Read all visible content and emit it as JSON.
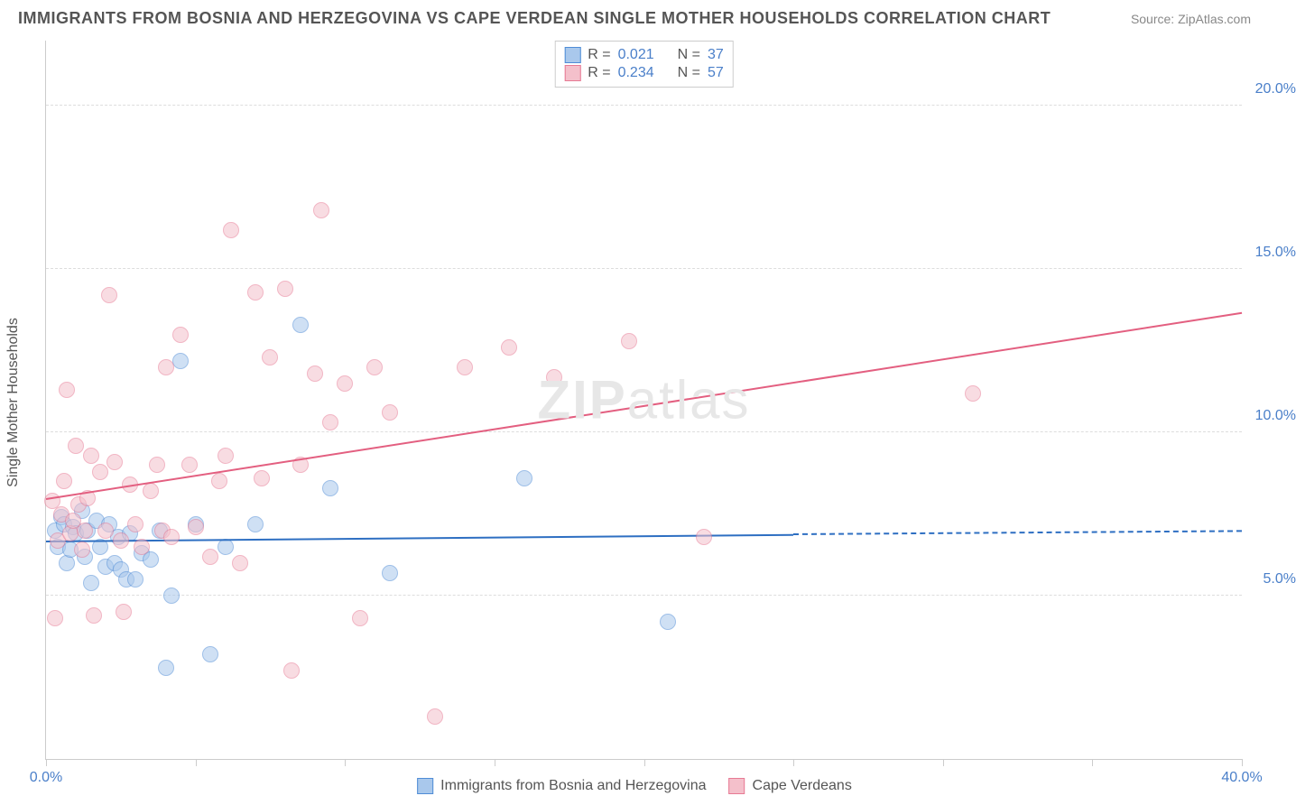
{
  "title": "IMMIGRANTS FROM BOSNIA AND HERZEGOVINA VS CAPE VERDEAN SINGLE MOTHER HOUSEHOLDS CORRELATION CHART",
  "source": "Source: ZipAtlas.com",
  "watermark_prefix": "ZIP",
  "watermark_suffix": "atlas",
  "ylabel": "Single Mother Households",
  "chart": {
    "type": "scatter",
    "xlim": [
      0,
      40
    ],
    "ylim": [
      0,
      22
    ],
    "yticks": [
      5,
      10,
      15,
      20
    ],
    "ytick_labels": [
      "5.0%",
      "10.0%",
      "15.0%",
      "20.0%"
    ],
    "xticks": [
      0,
      5,
      10,
      15,
      20,
      25,
      30,
      35,
      40
    ],
    "xtick_labels_shown": {
      "0": "0.0%",
      "40": "40.0%"
    },
    "background_color": "#ffffff",
    "grid_color": "#dddddd",
    "axis_color": "#cccccc",
    "tick_label_color": "#4a7fc9",
    "point_radius": 9,
    "point_opacity": 0.55
  },
  "series": [
    {
      "id": "bosnia",
      "label": "Immigrants from Bosnia and Herzegovina",
      "fill_color": "#a9c8ec",
      "stroke_color": "#4f8cd6",
      "line_color": "#2e6fc2",
      "R": "0.021",
      "N": "37",
      "trend": {
        "x1": 0,
        "y1": 6.7,
        "x2_solid": 25,
        "y2_solid": 6.9,
        "x2_dash": 40,
        "y2_dash": 7.0
      },
      "points": [
        [
          0.3,
          7.0
        ],
        [
          0.4,
          6.5
        ],
        [
          0.5,
          7.4
        ],
        [
          0.6,
          7.2
        ],
        [
          0.7,
          6.0
        ],
        [
          0.8,
          6.4
        ],
        [
          0.9,
          7.1
        ],
        [
          1.0,
          6.9
        ],
        [
          1.2,
          7.6
        ],
        [
          1.3,
          6.2
        ],
        [
          1.4,
          7.0
        ],
        [
          1.5,
          5.4
        ],
        [
          1.7,
          7.3
        ],
        [
          1.8,
          6.5
        ],
        [
          2.0,
          5.9
        ],
        [
          2.1,
          7.2
        ],
        [
          2.3,
          6.0
        ],
        [
          2.4,
          6.8
        ],
        [
          2.5,
          5.8
        ],
        [
          2.7,
          5.5
        ],
        [
          2.8,
          6.9
        ],
        [
          3.0,
          5.5
        ],
        [
          3.2,
          6.3
        ],
        [
          3.5,
          6.1
        ],
        [
          3.8,
          7.0
        ],
        [
          4.0,
          2.8
        ],
        [
          4.2,
          5.0
        ],
        [
          4.5,
          12.2
        ],
        [
          5.0,
          7.2
        ],
        [
          5.5,
          3.2
        ],
        [
          6.0,
          6.5
        ],
        [
          7.0,
          7.2
        ],
        [
          8.5,
          13.3
        ],
        [
          9.5,
          8.3
        ],
        [
          11.5,
          5.7
        ],
        [
          16.0,
          8.6
        ],
        [
          20.8,
          4.2
        ]
      ]
    },
    {
      "id": "capeverde",
      "label": "Cape Verdeans",
      "fill_color": "#f4c0cb",
      "stroke_color": "#e77a94",
      "line_color": "#e35f80",
      "R": "0.234",
      "N": "57",
      "trend": {
        "x1": 0,
        "y1": 8.0,
        "x2_solid": 40,
        "y2_solid": 13.7,
        "x2_dash": 40,
        "y2_dash": 13.7
      },
      "points": [
        [
          0.2,
          7.9
        ],
        [
          0.3,
          4.3
        ],
        [
          0.4,
          6.7
        ],
        [
          0.5,
          7.5
        ],
        [
          0.6,
          8.5
        ],
        [
          0.7,
          11.3
        ],
        [
          0.8,
          6.9
        ],
        [
          0.9,
          7.3
        ],
        [
          1.0,
          9.6
        ],
        [
          1.1,
          7.8
        ],
        [
          1.2,
          6.4
        ],
        [
          1.3,
          7.0
        ],
        [
          1.4,
          8.0
        ],
        [
          1.5,
          9.3
        ],
        [
          1.6,
          4.4
        ],
        [
          1.8,
          8.8
        ],
        [
          2.0,
          7.0
        ],
        [
          2.1,
          14.2
        ],
        [
          2.3,
          9.1
        ],
        [
          2.5,
          6.7
        ],
        [
          2.6,
          4.5
        ],
        [
          2.8,
          8.4
        ],
        [
          3.0,
          7.2
        ],
        [
          3.2,
          6.5
        ],
        [
          3.5,
          8.2
        ],
        [
          3.7,
          9.0
        ],
        [
          3.9,
          7.0
        ],
        [
          4.0,
          12.0
        ],
        [
          4.2,
          6.8
        ],
        [
          4.5,
          13.0
        ],
        [
          4.8,
          9.0
        ],
        [
          5.0,
          7.1
        ],
        [
          5.5,
          6.2
        ],
        [
          5.8,
          8.5
        ],
        [
          6.0,
          9.3
        ],
        [
          6.2,
          16.2
        ],
        [
          6.5,
          6.0
        ],
        [
          7.0,
          14.3
        ],
        [
          7.2,
          8.6
        ],
        [
          7.5,
          12.3
        ],
        [
          8.0,
          14.4
        ],
        [
          8.2,
          2.7
        ],
        [
          8.5,
          9.0
        ],
        [
          9.0,
          11.8
        ],
        [
          9.2,
          16.8
        ],
        [
          9.5,
          10.3
        ],
        [
          10.0,
          11.5
        ],
        [
          10.5,
          4.3
        ],
        [
          11.0,
          12.0
        ],
        [
          11.5,
          10.6
        ],
        [
          13.0,
          1.3
        ],
        [
          14.0,
          12.0
        ],
        [
          15.5,
          12.6
        ],
        [
          17.0,
          11.7
        ],
        [
          19.5,
          12.8
        ],
        [
          22.0,
          6.8
        ],
        [
          31.0,
          11.2
        ]
      ]
    }
  ],
  "legend_top": {
    "r_label": "R =",
    "n_label": "N ="
  }
}
